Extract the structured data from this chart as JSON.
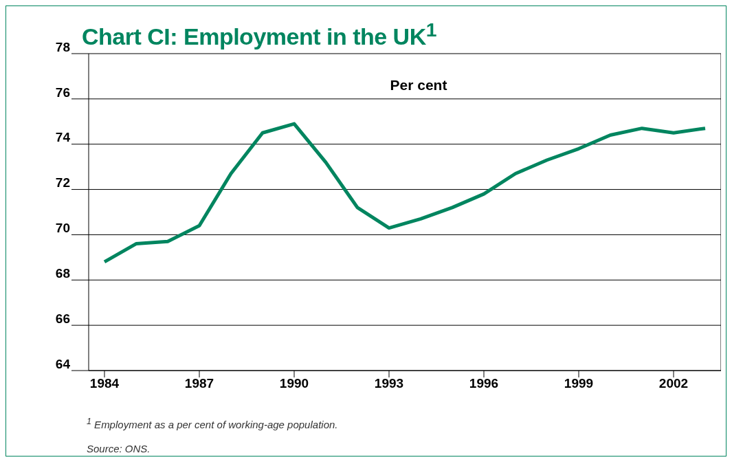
{
  "chart_data": {
    "type": "line",
    "title": "Chart CI: Employment in the UK$^{1}$",
    "annotations": [
      "Per cent",
      "$^{1}$ Employment as a per cent of working-age population.",
      "Source: ONS."
    ],
    "x": [
      1984,
      1985,
      1986,
      1987,
      1988,
      1989,
      1990,
      1991,
      1992,
      1993,
      1994,
      1995,
      1996,
      1997,
      1998,
      1999,
      2000,
      2001,
      2002,
      2003
    ],
    "series": [
      {
        "color": "#00855f",
        "values": [
          68.8,
          69.6,
          69.7,
          70.4,
          72.7,
          74.5,
          74.9,
          73.2,
          71.2,
          70.3,
          70.7,
          71.2,
          71.8,
          72.7,
          73.3,
          73.8,
          74.4,
          74.7,
          74.5,
          74.7
        ]
      }
    ],
    "xlim": [
      1983.5,
      2003.5
    ],
    "xticks": [
      1984,
      1987,
      1990,
      1993,
      1996,
      1999,
      2002
    ],
    "ylim": [
      64,
      78
    ],
    "yticks": [
      64,
      66,
      68,
      70,
      72,
      74,
      76,
      78
    ],
    "grid": "y",
    "marker": "none",
    "line_style": "solid"
  }
}
